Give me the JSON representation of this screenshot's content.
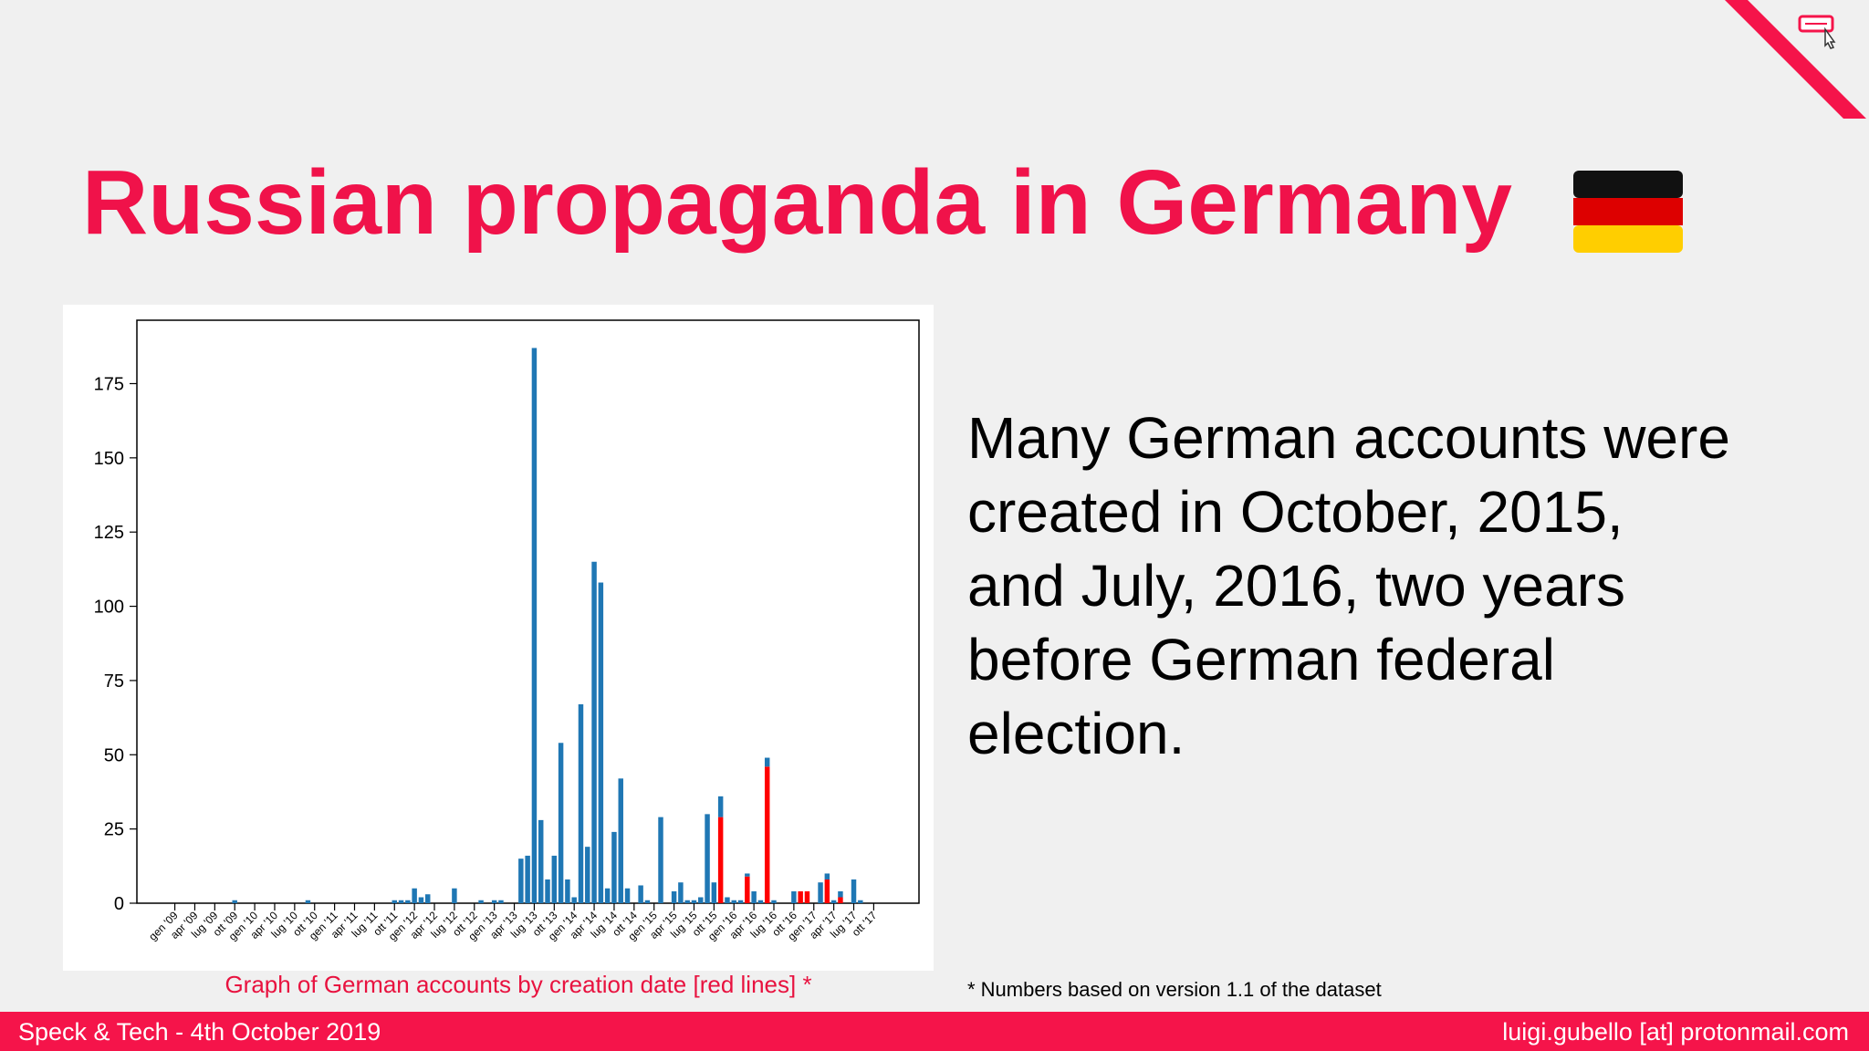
{
  "slide": {
    "title": "Russian propaganda in Germany",
    "body": [
      "Many German accounts were",
      "created in October, 2015,",
      "and July, 2016, two years",
      "before German federal",
      "election."
    ],
    "footnote": "* Numbers based on version 1.1 of the dataset"
  },
  "footer": {
    "left": "Speck & Tech - 4th October 2019",
    "right": "luigi.gubello [at] protonmail.com"
  },
  "chart_data": {
    "type": "bar",
    "stacked": true,
    "caption": "Graph of German accounts by creation date [red lines] *",
    "categories": [
      "gen '09",
      null,
      null,
      "apr '09",
      null,
      null,
      "lug '09",
      null,
      null,
      "ott '09",
      null,
      null,
      "gen '10",
      null,
      null,
      "apr '10",
      null,
      null,
      "lug '10",
      null,
      null,
      "ott '10",
      null,
      null,
      "gen '11",
      null,
      null,
      "apr '11",
      null,
      null,
      "lug '11",
      null,
      null,
      "ott '11",
      null,
      null,
      "gen '12",
      null,
      null,
      "apr '12",
      null,
      null,
      "lug '12",
      null,
      null,
      "ott '12",
      null,
      null,
      "gen '13",
      null,
      null,
      "apr '13",
      null,
      null,
      "lug '13",
      null,
      null,
      "ott '13",
      null,
      null,
      "gen '14",
      null,
      null,
      "apr '14",
      null,
      null,
      "lug '14",
      null,
      null,
      "ott '14",
      null,
      null,
      "gen '15",
      null,
      null,
      "apr '15",
      null,
      null,
      "lug '15",
      null,
      null,
      "ott '15",
      null,
      null,
      "gen '16",
      null,
      null,
      "apr '16",
      null,
      null,
      "lug '16",
      null,
      null,
      "ott '16",
      null,
      null,
      "gen '17",
      null,
      null,
      "apr '17",
      null,
      null,
      "lug '17",
      null,
      null,
      "ott '17"
    ],
    "series": [
      {
        "color": "#ff0000",
        "values": [
          0,
          0,
          0,
          0,
          0,
          0,
          0,
          0,
          0,
          0,
          0,
          0,
          0,
          0,
          0,
          0,
          0,
          0,
          0,
          0,
          0,
          0,
          0,
          0,
          0,
          0,
          0,
          0,
          0,
          0,
          0,
          0,
          0,
          0,
          0,
          0,
          0,
          0,
          0,
          0,
          0,
          0,
          0,
          0,
          0,
          0,
          0,
          0,
          0,
          0,
          0,
          0,
          0,
          0,
          0,
          0,
          0,
          0,
          0,
          0,
          0,
          0,
          0,
          0,
          0,
          0,
          0,
          0,
          0,
          0,
          0,
          0,
          0,
          0,
          0,
          0,
          0,
          0,
          0,
          0,
          0,
          0,
          29,
          0,
          0,
          0,
          9,
          0,
          0,
          46,
          0,
          0,
          0,
          0,
          4,
          4,
          0,
          0,
          8,
          0,
          2,
          0,
          0,
          0,
          0,
          0
        ]
      },
      {
        "color": "#1f77b4",
        "values": [
          0,
          0,
          0,
          0,
          0,
          0,
          0,
          0,
          0,
          1,
          0,
          0,
          0,
          0,
          0,
          0,
          0,
          0,
          0,
          0,
          1,
          0,
          0,
          0,
          0,
          0,
          0,
          0,
          0,
          0,
          0,
          0,
          0,
          1,
          1,
          1,
          5,
          2,
          3,
          0,
          0,
          0,
          5,
          0,
          0,
          0,
          1,
          0,
          1,
          1,
          0,
          0,
          15,
          16,
          187,
          28,
          8,
          16,
          54,
          8,
          2,
          67,
          19,
          115,
          108,
          5,
          24,
          42,
          5,
          0,
          6,
          1,
          0,
          29,
          0,
          4,
          7,
          1,
          1,
          2,
          30,
          7,
          7,
          2,
          1,
          1,
          1,
          4,
          1,
          3,
          1,
          0,
          0,
          4,
          0,
          0,
          0,
          7,
          2,
          1,
          2,
          0,
          8,
          1,
          0,
          0
        ]
      }
    ],
    "xlim": [
      -5.7,
      111.8
    ],
    "ylim": [
      0,
      196.35
    ],
    "yticks": [
      0,
      25,
      50,
      75,
      100,
      125,
      150,
      175
    ]
  }
}
